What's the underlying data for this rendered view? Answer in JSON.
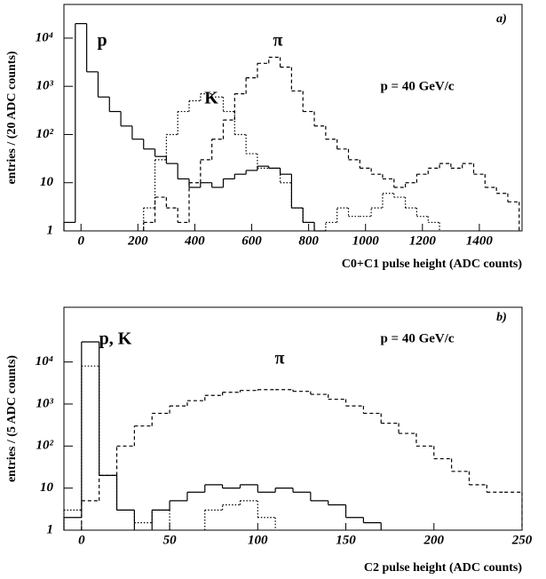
{
  "chart_data": [
    {
      "type": "histogram",
      "log_y": true,
      "xlabel": "C0+C1 pulse height (ADC counts)",
      "ylabel": "entries / (20 ADC counts)",
      "annotations": [
        {
          "text": "a)"
        },
        {
          "text": "p = 40 GeV/c"
        }
      ],
      "xlim": [
        -60,
        1550
      ],
      "ylim": [
        1,
        50000
      ],
      "xticks": [
        0,
        200,
        400,
        600,
        800,
        1000,
        1200,
        1400
      ],
      "yticks": [
        {
          "value": 1,
          "label": "1"
        },
        {
          "value": 10,
          "label": "10"
        },
        {
          "value": 100,
          "label": "10²"
        },
        {
          "value": 1000,
          "label": "10³"
        },
        {
          "value": 10000,
          "label": "10⁴"
        }
      ],
      "bins": [
        -60,
        -20,
        20,
        60,
        100,
        140,
        180,
        220,
        260,
        300,
        340,
        380,
        420,
        460,
        500,
        540,
        580,
        620,
        660,
        700,
        740,
        780,
        820,
        860,
        900,
        940,
        980,
        1020,
        1060,
        1100,
        1140,
        1180,
        1220,
        1260,
        1300,
        1340,
        1380,
        1420,
        1460,
        1500,
        1540
      ],
      "series": [
        {
          "name": "p",
          "color": "#000000",
          "style": "solid",
          "values": [
            1.5,
            20000,
            2000,
            600,
            300,
            150,
            80,
            50,
            35,
            25,
            12,
            8,
            10,
            8,
            12,
            15,
            18,
            22,
            20,
            15,
            3,
            1.5,
            1,
            null,
            null,
            null,
            null,
            null,
            null,
            null,
            null,
            null,
            null,
            null,
            null,
            null,
            null,
            null,
            null,
            null
          ]
        },
        {
          "name": "K",
          "color": "#000000",
          "style": "dotted",
          "values": [
            null,
            null,
            null,
            null,
            null,
            null,
            null,
            3,
            30,
            100,
            300,
            500,
            700,
            600,
            300,
            100,
            40,
            20,
            20,
            10,
            3,
            1.5,
            null,
            1.5,
            3,
            2,
            2,
            3,
            6,
            5,
            3,
            2,
            1.5,
            null,
            null,
            null,
            null,
            null,
            null,
            null
          ]
        },
        {
          "name": "π",
          "color": "#000000",
          "style": "dashed",
          "values": [
            null,
            null,
            null,
            null,
            null,
            null,
            null,
            1.5,
            5,
            3,
            1.5,
            10,
            30,
            80,
            200,
            700,
            1500,
            3000,
            4000,
            2500,
            800,
            300,
            150,
            80,
            50,
            30,
            20,
            15,
            12,
            8,
            10,
            15,
            20,
            25,
            20,
            25,
            15,
            8,
            6,
            4
          ]
        }
      ]
    },
    {
      "type": "histogram",
      "log_y": true,
      "xlabel": "C2 pulse height (ADC counts)",
      "ylabel": "entries / (5 ADC counts)",
      "annotations": [
        {
          "text": "b)"
        },
        {
          "text": "p, K"
        },
        {
          "text": "p = 40 GeV/c"
        }
      ],
      "xlim": [
        -10,
        250
      ],
      "ylim": [
        1,
        200000
      ],
      "xticks": [
        0,
        50,
        100,
        150,
        200,
        250
      ],
      "yticks": [
        {
          "value": 1,
          "label": "1"
        },
        {
          "value": 10,
          "label": "10"
        },
        {
          "value": 100,
          "label": "10²"
        },
        {
          "value": 1000,
          "label": "10³"
        },
        {
          "value": 10000,
          "label": "10⁴"
        }
      ],
      "bins": [
        -10,
        0,
        10,
        20,
        30,
        40,
        50,
        60,
        70,
        80,
        90,
        100,
        110,
        120,
        130,
        140,
        150,
        160,
        170,
        180,
        190,
        200,
        210,
        220,
        230,
        240,
        250
      ],
      "series": [
        {
          "color": "#000000",
          "style": "solid",
          "values": [
            2,
            30000,
            20,
            3,
            null,
            3,
            5,
            8,
            12,
            10,
            12,
            8,
            10,
            8,
            5,
            4,
            2,
            1.5,
            null,
            null,
            null,
            null,
            null,
            null,
            null,
            null
          ]
        },
        {
          "color": "#000000",
          "style": "dotted",
          "values": [
            3,
            8000,
            20,
            3,
            1.5,
            3,
            null,
            null,
            3,
            4,
            5,
            2,
            null,
            null,
            null,
            null,
            null,
            null,
            null,
            null,
            null,
            null,
            null,
            null,
            null,
            null
          ]
        },
        {
          "name": "π",
          "color": "#000000",
          "style": "dashed",
          "values": [
            null,
            5,
            20,
            100,
            300,
            600,
            900,
            1200,
            1600,
            1900,
            2100,
            2200,
            2200,
            2000,
            1700,
            1300,
            900,
            600,
            350,
            200,
            100,
            50,
            25,
            12,
            8,
            8
          ]
        }
      ]
    }
  ]
}
